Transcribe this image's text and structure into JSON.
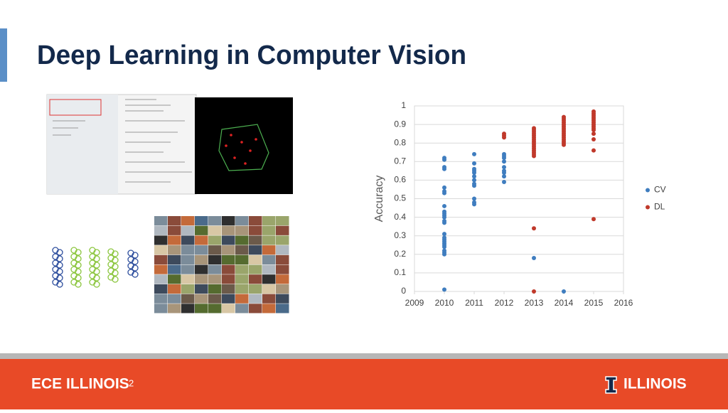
{
  "slide": {
    "title": "Deep Learning in Computer Vision",
    "footer_left": "ECE ILLINOIS",
    "page_number": "2",
    "footer_right": "ILLINOIS"
  },
  "chart_data": {
    "type": "scatter",
    "ylabel": "Accuracy",
    "xlim": [
      2009,
      2016
    ],
    "xticks": [
      2009,
      2010,
      2011,
      2012,
      2013,
      2014,
      2015,
      2016
    ],
    "ylim": [
      0,
      1
    ],
    "yticks": [
      0,
      0.1,
      0.2,
      0.3,
      0.4,
      0.5,
      0.6,
      0.7,
      0.8,
      0.9,
      1
    ],
    "grid": true,
    "legend": "right",
    "series": [
      {
        "name": "CV",
        "color": "#3f7dbf",
        "x": [
          2010,
          2010,
          2010,
          2010,
          2010,
          2010,
          2010,
          2010,
          2010,
          2010,
          2010,
          2010,
          2010,
          2010,
          2010,
          2010,
          2010,
          2010,
          2010,
          2010,
          2010,
          2010,
          2010,
          2010,
          2010,
          2011,
          2011,
          2011,
          2011,
          2011,
          2011,
          2011,
          2011,
          2011,
          2011,
          2011,
          2011,
          2012,
          2012,
          2012,
          2012,
          2012,
          2012,
          2012,
          2012,
          2012,
          2013,
          2014
        ],
        "values": [
          0.72,
          0.71,
          0.67,
          0.66,
          0.56,
          0.54,
          0.53,
          0.46,
          0.43,
          0.42,
          0.41,
          0.4,
          0.38,
          0.37,
          0.31,
          0.29,
          0.28,
          0.27,
          0.26,
          0.25,
          0.24,
          0.22,
          0.21,
          0.2,
          0.01,
          0.74,
          0.69,
          0.66,
          0.65,
          0.64,
          0.62,
          0.6,
          0.58,
          0.57,
          0.5,
          0.48,
          0.47,
          0.74,
          0.73,
          0.72,
          0.7,
          0.67,
          0.65,
          0.64,
          0.62,
          0.59,
          0.18,
          0
        ]
      },
      {
        "name": "DL",
        "color": "#c0392b",
        "x": [
          2012,
          2012,
          2012,
          2013,
          2013,
          2013,
          2013,
          2013,
          2013,
          2013,
          2013,
          2013,
          2013,
          2013,
          2013,
          2013,
          2013,
          2013,
          2013,
          2013,
          2013,
          2014,
          2014,
          2014,
          2014,
          2014,
          2014,
          2014,
          2014,
          2014,
          2014,
          2014,
          2014,
          2014,
          2014,
          2014,
          2014,
          2015,
          2015,
          2015,
          2015,
          2015,
          2015,
          2015,
          2015,
          2015,
          2015,
          2015,
          2015,
          2015,
          2015,
          2015
        ],
        "values": [
          0.85,
          0.84,
          0.83,
          0.88,
          0.87,
          0.86,
          0.85,
          0.84,
          0.83,
          0.82,
          0.81,
          0.8,
          0.79,
          0.78,
          0.77,
          0.76,
          0.75,
          0.74,
          0.73,
          0.34,
          0,
          0.94,
          0.93,
          0.92,
          0.91,
          0.9,
          0.89,
          0.88,
          0.87,
          0.86,
          0.85,
          0.84,
          0.83,
          0.82,
          0.81,
          0.8,
          0.79,
          0.97,
          0.96,
          0.95,
          0.94,
          0.93,
          0.92,
          0.91,
          0.9,
          0.89,
          0.88,
          0.87,
          0.85,
          0.82,
          0.76,
          0.39
        ]
      }
    ]
  }
}
